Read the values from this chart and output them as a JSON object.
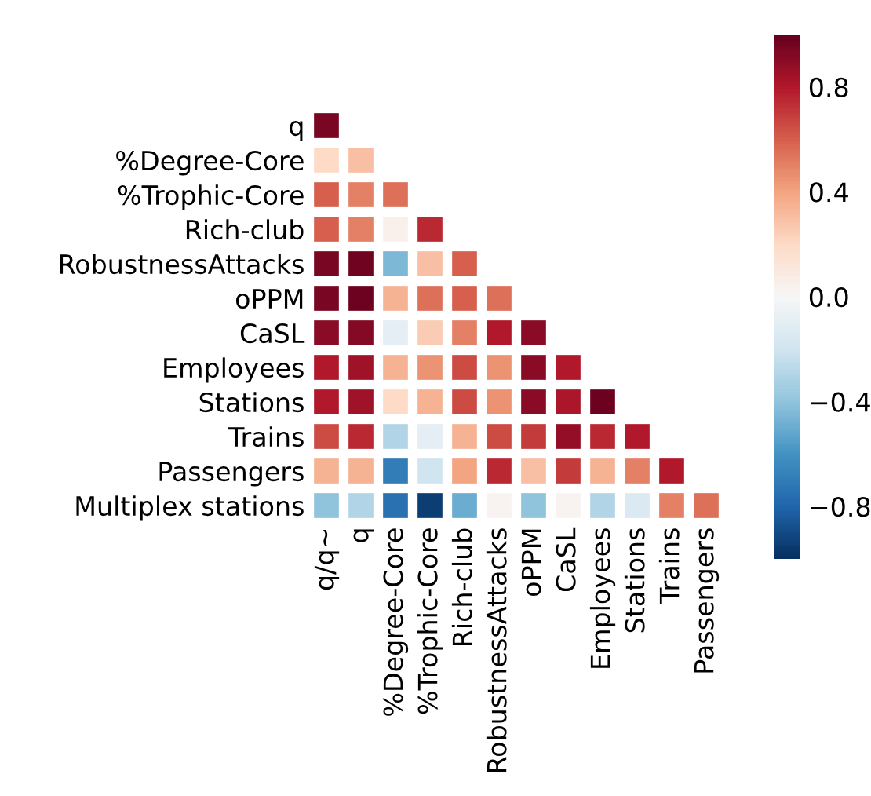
{
  "chart_data": {
    "type": "heatmap",
    "categories": [
      "q/q~",
      "q",
      "%Degree-Core",
      "%Trophic-Core",
      "Rich-club",
      "RobustnessAttacks",
      "oPPM",
      "CaSL",
      "Employees",
      "Stations",
      "Trains",
      "Passengers"
    ],
    "y_categories": [
      "q",
      "%Degree-Core",
      "%Trophic-Core",
      "Rich-club",
      "RobustnessAttacks",
      "oPPM",
      "CaSL",
      "Employees",
      "Stations",
      "Trains",
      "Passengers",
      "Multiplex stations"
    ],
    "cells": [
      [
        0.95,
        null,
        null,
        null,
        null,
        null,
        null,
        null,
        null,
        null,
        null,
        null
      ],
      [
        0.2,
        0.3,
        null,
        null,
        null,
        null,
        null,
        null,
        null,
        null,
        null,
        null
      ],
      [
        0.6,
        0.5,
        0.55,
        null,
        null,
        null,
        null,
        null,
        null,
        null,
        null,
        null
      ],
      [
        0.6,
        0.5,
        0.05,
        0.75,
        null,
        null,
        null,
        null,
        null,
        null,
        null,
        null
      ],
      [
        0.95,
        0.97,
        -0.45,
        0.3,
        0.6,
        null,
        null,
        null,
        null,
        null,
        null,
        null
      ],
      [
        0.95,
        0.98,
        0.35,
        0.55,
        0.6,
        0.55,
        null,
        null,
        null,
        null,
        null,
        null
      ],
      [
        0.9,
        0.92,
        -0.1,
        0.25,
        0.5,
        0.8,
        0.9,
        null,
        null,
        null,
        null,
        null
      ],
      [
        0.8,
        0.85,
        0.35,
        0.45,
        0.65,
        0.45,
        0.9,
        0.8,
        null,
        null,
        null,
        null
      ],
      [
        0.8,
        0.85,
        0.2,
        0.35,
        0.65,
        0.45,
        0.9,
        0.82,
        0.98,
        null,
        null,
        null
      ],
      [
        0.65,
        0.75,
        -0.3,
        -0.1,
        0.35,
        0.65,
        0.7,
        0.88,
        0.75,
        0.8,
        null,
        null
      ],
      [
        0.35,
        0.35,
        -0.7,
        -0.2,
        0.4,
        0.75,
        0.3,
        0.7,
        0.35,
        0.5,
        0.8,
        null
      ],
      [
        -0.4,
        -0.3,
        -0.75,
        -0.95,
        -0.5,
        0.03,
        -0.4,
        0.03,
        -0.3,
        -0.15,
        0.5,
        0.55
      ]
    ],
    "clim": [
      -1,
      1
    ],
    "cticks": [
      {
        "value": -0.8,
        "label": "−0.8"
      },
      {
        "value": -0.4,
        "label": "−0.4"
      },
      {
        "value": 0,
        "label": "0.0"
      },
      0.4,
      0.8
    ]
  }
}
